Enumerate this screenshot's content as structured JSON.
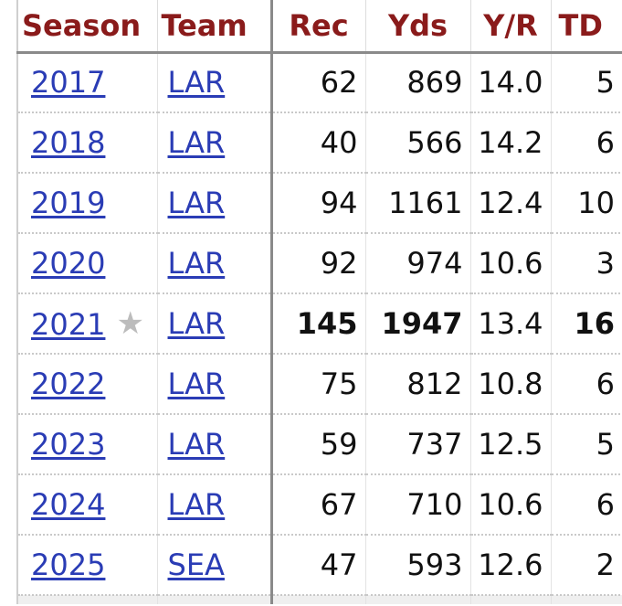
{
  "headers": {
    "season": "Season",
    "team": "Team",
    "rec": "Rec",
    "yds": "Yds",
    "ypr": "Y/R",
    "td": "TD"
  },
  "rows": [
    {
      "season": "2017",
      "team": "LAR",
      "rec": "62",
      "yds": "869",
      "ypr": "14.0",
      "td": "5"
    },
    {
      "season": "2018",
      "team": "LAR",
      "rec": "40",
      "yds": "566",
      "ypr": "14.2",
      "td": "6"
    },
    {
      "season": "2019",
      "team": "LAR",
      "rec": "94",
      "yds": "1161",
      "ypr": "12.4",
      "td": "10"
    },
    {
      "season": "2020",
      "team": "LAR",
      "rec": "92",
      "yds": "974",
      "ypr": "10.6",
      "td": "3"
    },
    {
      "season": "2021",
      "team": "LAR",
      "rec": "145",
      "yds": "1947",
      "ypr": "13.4",
      "td": "16",
      "star": "★"
    },
    {
      "season": "2022",
      "team": "LAR",
      "rec": "75",
      "yds": "812",
      "ypr": "10.8",
      "td": "6"
    },
    {
      "season": "2023",
      "team": "LAR",
      "rec": "59",
      "yds": "737",
      "ypr": "12.5",
      "td": "5"
    },
    {
      "season": "2024",
      "team": "LAR",
      "rec": "67",
      "yds": "710",
      "ypr": "10.6",
      "td": "6"
    },
    {
      "season": "2025",
      "team": "SEA",
      "rec": "47",
      "yds": "593",
      "ypr": "12.6",
      "td": "2"
    }
  ],
  "colors": {
    "header_text": "#8a1b1b",
    "link": "#2a3cb5",
    "star": "#bcbcbc"
  }
}
